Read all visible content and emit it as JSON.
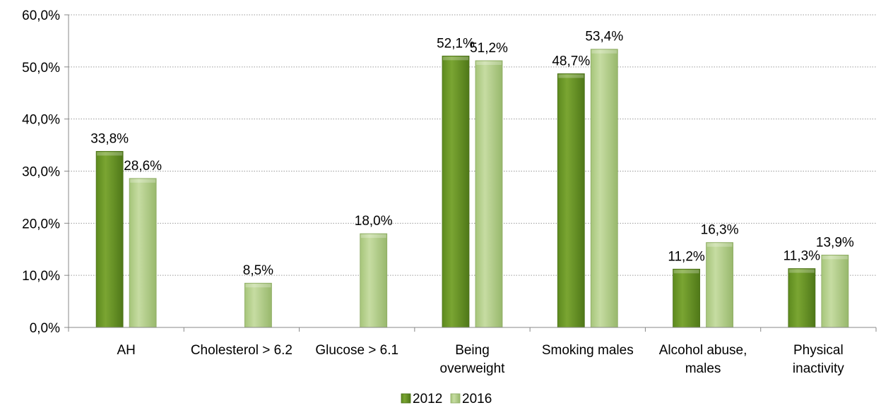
{
  "chart_data": {
    "type": "bar",
    "categories": [
      [
        "AH"
      ],
      [
        "Cholesterol > 6.2"
      ],
      [
        "Glucose > 6.1"
      ],
      [
        "Being",
        "overweight"
      ],
      [
        "Smoking males"
      ],
      [
        "Alcohol abuse,",
        "males"
      ],
      [
        "Physical",
        "inactivity"
      ]
    ],
    "series": [
      {
        "name": "2012",
        "values": [
          33.8,
          null,
          null,
          52.1,
          48.7,
          11.2,
          11.3
        ],
        "labels": [
          "33,8%",
          null,
          null,
          "52,1%",
          "48,7%",
          "11,2%",
          "11,3%"
        ],
        "color": "#6f9a2c"
      },
      {
        "name": "2016",
        "values": [
          28.6,
          8.5,
          18.0,
          51.2,
          53.4,
          16.3,
          13.9
        ],
        "labels": [
          "28,6%",
          "8,5%",
          "18,0%",
          "51,2%",
          "53,4%",
          "16,3%",
          "13,9%"
        ],
        "color": "#b4cf8a"
      }
    ],
    "ylim": [
      0,
      60
    ],
    "yticks": [
      "0,0%",
      "10,0%",
      "20,0%",
      "30,0%",
      "40,0%",
      "50,0%",
      "60,0%"
    ],
    "grid": true,
    "legend": "bottom"
  }
}
